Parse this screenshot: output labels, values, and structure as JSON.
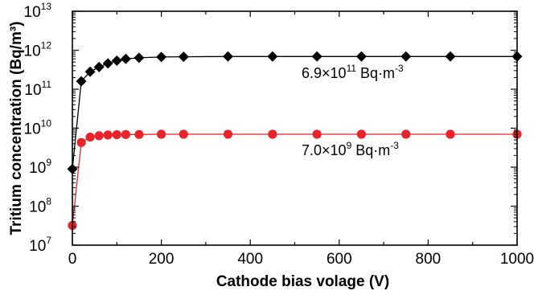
{
  "chart_data": {
    "type": "scatter",
    "xlabel": "Cathode bias volage (V)",
    "ylabel": "Tritium concentration (Bq/m³)",
    "xlim": [
      0,
      1000
    ],
    "ylim": [
      10000000.0,
      10000000000000.0
    ],
    "y_scale": "log",
    "x_ticks": [
      0,
      200,
      400,
      600,
      800,
      1000
    ],
    "y_tick_exponents": [
      7,
      8,
      9,
      10,
      11,
      12,
      13
    ],
    "y_tick_base": "10",
    "grid": false,
    "series": [
      {
        "color": "#000000",
        "marker": "diamond",
        "connected": true,
        "x": [
          0,
          20,
          40,
          60,
          80,
          100,
          120,
          150,
          200,
          250,
          350,
          450,
          550,
          650,
          750,
          850,
          1000
        ],
        "y": [
          900000000.0,
          160000000000.0,
          280000000000.0,
          370000000000.0,
          460000000000.0,
          540000000000.0,
          600000000000.0,
          640000000000.0,
          670000000000.0,
          680000000000.0,
          690000000000.0,
          690000000000.0,
          690000000000.0,
          690000000000.0,
          690000000000.0,
          690000000000.0,
          690000000000.0
        ]
      },
      {
        "color": "#e8232a",
        "marker": "circle",
        "connected": true,
        "x": [
          0,
          20,
          40,
          60,
          80,
          100,
          120,
          150,
          200,
          250,
          350,
          450,
          550,
          650,
          750,
          850,
          1000
        ],
        "y": [
          32000000.0,
          4300000000.0,
          5900000000.0,
          6400000000.0,
          6700000000.0,
          6800000000.0,
          6900000000.0,
          6900000000.0,
          7000000000.0,
          7000000000.0,
          7000000000.0,
          7000000000.0,
          7000000000.0,
          7000000000.0,
          7000000000.0,
          7000000000.0,
          7000000000.0
        ]
      }
    ],
    "annotations": [
      {
        "prefix": "6.9×10",
        "exponent": "11",
        "suffix": " Bq·m",
        "unit_exponent": "-3"
      },
      {
        "prefix": "7.0×10",
        "exponent": "9",
        "suffix": " Bq·m",
        "unit_exponent": "-3"
      }
    ]
  }
}
